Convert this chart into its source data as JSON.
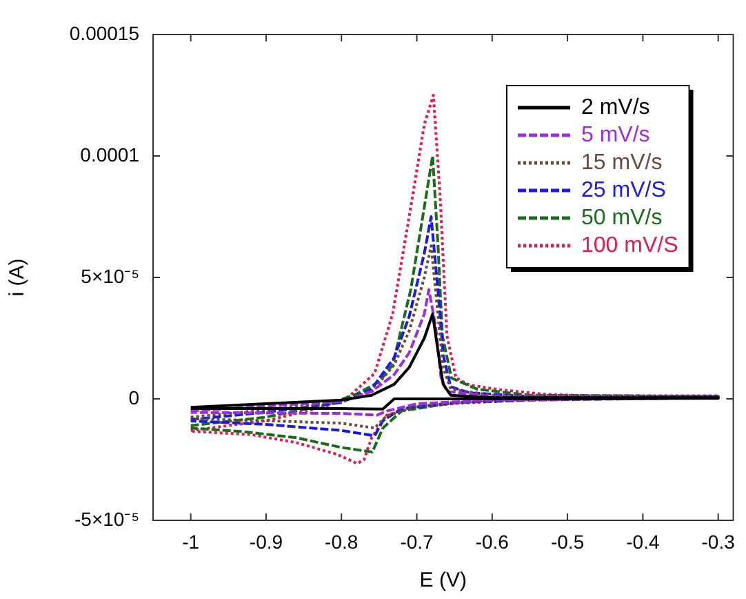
{
  "chart_data": {
    "type": "line",
    "xlabel": "E (V)",
    "ylabel": "i (A)",
    "xlim": [
      -1.05,
      -0.28
    ],
    "ylim": [
      -5e-05,
      0.00015
    ],
    "xticks": [
      -1,
      -0.9,
      -0.8,
      -0.7,
      -0.6,
      -0.5,
      -0.4,
      -0.3
    ],
    "yticks": [
      {
        "value": -5e-05,
        "label": "-5×10⁻⁵"
      },
      0,
      {
        "value": 5e-05,
        "label": "5×10⁻⁵"
      },
      0.0001,
      0.00015
    ],
    "legend": "top right",
    "marker": "none",
    "series": [
      {
        "name": "2 mV/s",
        "color": "#000000",
        "line_style": "solid",
        "x": [
          -1,
          -0.9,
          -0.8,
          -0.76,
          -0.73,
          -0.71,
          -0.69,
          -0.679,
          -0.672,
          -0.665,
          -0.655,
          -0.6,
          -0.3,
          -0.3,
          -0.6,
          -0.73,
          -0.745,
          -0.8,
          -0.9,
          -1
        ],
        "values": [
          -3.5e-06,
          -2e-06,
          -5e-07,
          1.5e-06,
          6e-06,
          1.3e-05,
          2.5e-05,
          3.5e-05,
          2e-05,
          6e-06,
          1.5e-06,
          5e-07,
          5e-07,
          2e-07,
          0,
          0,
          -4.2e-06,
          -4e-06,
          -4e-06,
          -4e-06
        ]
      },
      {
        "name": "5 mV/s",
        "color": "#9b30d9",
        "line_style": "dashed",
        "x": [
          -1,
          -0.9,
          -0.8,
          -0.76,
          -0.73,
          -0.71,
          -0.69,
          -0.684,
          -0.675,
          -0.668,
          -0.66,
          -0.6,
          -0.3,
          -0.3,
          -0.6,
          -0.7,
          -0.74,
          -0.753,
          -0.8,
          -0.9,
          -1
        ],
        "values": [
          -5e-06,
          -3e-06,
          -1e-06,
          3e-06,
          1e-05,
          1.9e-05,
          3.5e-05,
          4.5e-05,
          3e-05,
          9e-06,
          3e-06,
          1e-06,
          5e-07,
          5e-07,
          -5e-07,
          -2e-06,
          -5e-06,
          -6.7e-06,
          -6e-06,
          -5.8e-06,
          -5.6e-06
        ]
      },
      {
        "name": "15 mV/s",
        "color": "#6b4a3a",
        "line_style": "dotted",
        "x": [
          -1,
          -0.9,
          -0.8,
          -0.76,
          -0.73,
          -0.71,
          -0.69,
          -0.681,
          -0.672,
          -0.665,
          -0.655,
          -0.6,
          -0.3,
          -0.3,
          -0.6,
          -0.7,
          -0.74,
          -0.756,
          -0.8,
          -0.9,
          -1
        ],
        "values": [
          -7.5e-06,
          -4.5e-06,
          -1e-06,
          3e-06,
          1.4e-05,
          2.8e-05,
          5e-05,
          6.3e-05,
          3.5e-05,
          1.3e-05,
          4e-06,
          1.5e-06,
          1e-06,
          5e-07,
          -5e-07,
          -3e-06,
          -7e-06,
          -1.2e-05,
          -1e-05,
          -9e-06,
          -8.2e-06
        ]
      },
      {
        "name": "25 mV/S",
        "color": "#1a1ae6",
        "line_style": "dashed",
        "x": [
          -1,
          -0.9,
          -0.8,
          -0.76,
          -0.73,
          -0.71,
          -0.69,
          -0.681,
          -0.672,
          -0.665,
          -0.655,
          -0.63,
          -0.55,
          -0.3,
          -0.3,
          -0.55,
          -0.65,
          -0.72,
          -0.745,
          -0.756,
          -0.8,
          -0.9,
          -1
        ],
        "values": [
          -8.5e-06,
          -5.5e-06,
          -1.5e-06,
          4e-06,
          1.7e-05,
          3.4e-05,
          6e-05,
          7.5e-05,
          4.5e-05,
          1.8e-05,
          5e-06,
          2.5e-06,
          1e-06,
          1e-06,
          5e-07,
          -5e-07,
          -1.5e-06,
          -4e-06,
          -9e-06,
          -1.52e-05,
          -1.3e-05,
          -1.05e-05,
          -9.1e-06
        ]
      },
      {
        "name": "50 mV/s",
        "color": "#1a6b1a",
        "line_style": "dashed",
        "x": [
          -1,
          -0.9,
          -0.82,
          -0.78,
          -0.75,
          -0.732,
          -0.708,
          -0.69,
          -0.679,
          -0.672,
          -0.666,
          -0.654,
          -0.62,
          -0.55,
          -0.3,
          -0.3,
          -0.55,
          -0.65,
          -0.72,
          -0.745,
          -0.759,
          -0.8,
          -0.86,
          -0.93,
          -1
        ],
        "values": [
          -1.1e-05,
          -7.5e-06,
          -2.5e-06,
          2e-06,
          7e-06,
          1.4e-05,
          4.5e-05,
          7.9e-05,
          0.0001,
          6.4e-05,
          2.6e-05,
          8.6e-06,
          4e-06,
          1.5e-06,
          1e-06,
          1e-06,
          0,
          -1.5e-06,
          -5e-06,
          -1.2e-05,
          -2.19e-05,
          -2e-05,
          -1.6e-05,
          -1.35e-05,
          -1.2e-05
        ]
      },
      {
        "name": "100 mV/S",
        "color": "#e8174f",
        "line_style": "dotted",
        "x": [
          -1,
          -0.9,
          -0.82,
          -0.79,
          -0.756,
          -0.732,
          -0.708,
          -0.69,
          -0.678,
          -0.669,
          -0.66,
          -0.648,
          -0.63,
          -0.59,
          -0.53,
          -0.47,
          -0.3,
          -0.3,
          -0.53,
          -0.59,
          -0.65,
          -0.71,
          -0.74,
          -0.76,
          -0.77,
          -0.779,
          -0.806,
          -0.86,
          -0.92,
          -1
        ],
        "values": [
          -1.3e-05,
          -9e-06,
          -3e-06,
          1e-06,
          1.05e-05,
          3.5e-05,
          7.9e-05,
          0.000113,
          0.000125,
          8.3e-05,
          2.6e-05,
          8.6e-06,
          5.7e-06,
          3.8e-06,
          1.9e-06,
          1.3e-06,
          1.3e-06,
          1e-06,
          0,
          -1e-06,
          -1.9e-06,
          -3.8e-06,
          -6.7e-06,
          -1.6e-05,
          -2.5e-05,
          -2.66e-05,
          -2.28e-05,
          -1.8e-05,
          -1.47e-05,
          -1.33e-05
        ]
      }
    ]
  }
}
